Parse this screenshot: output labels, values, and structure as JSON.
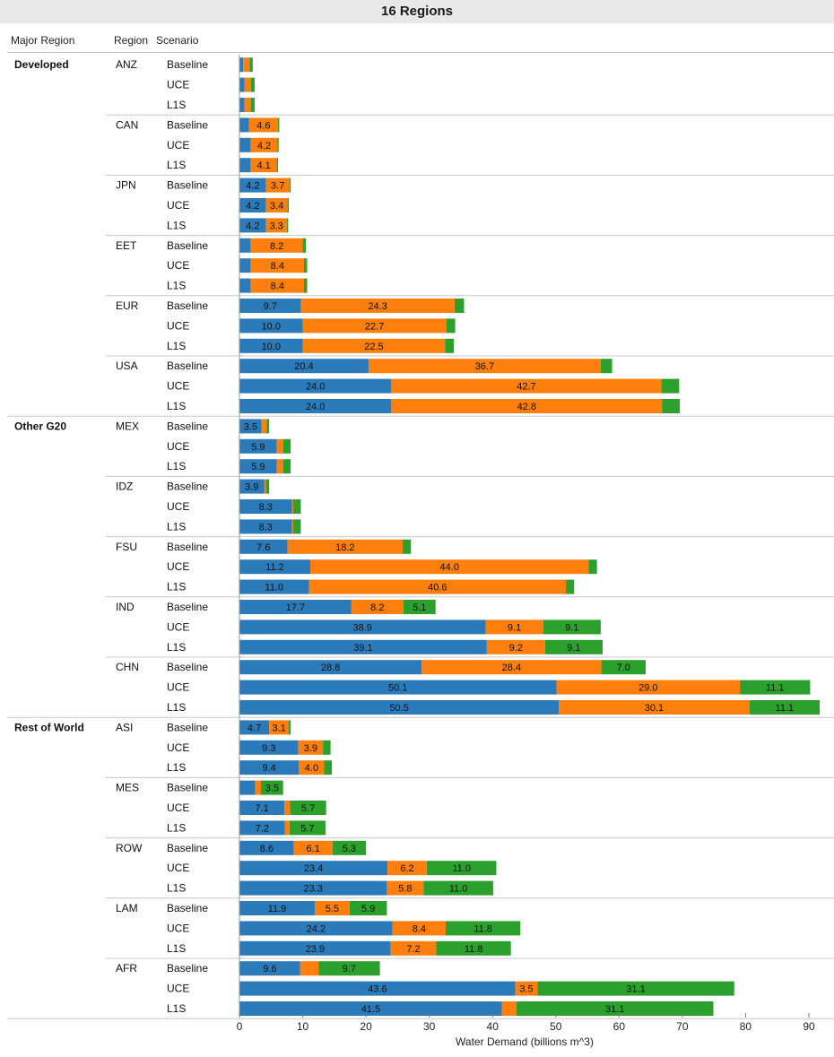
{
  "chart_data": {
    "type": "bar",
    "orientation": "horizontal",
    "stacked": true,
    "title": "16 Regions",
    "xlabel": "Water Demand (billions m^3)",
    "xlim": [
      0,
      90
    ],
    "xticks": [
      "0",
      "10",
      "20",
      "30",
      "40",
      "50",
      "60",
      "70",
      "80",
      "90"
    ],
    "row_headers": [
      "Major Region",
      "Region",
      "Scenario"
    ],
    "series_colors": [
      "#2b7bba",
      "#ff7f0e",
      "#2ca02c"
    ],
    "groups": [
      {
        "major": "Developed",
        "regions": [
          {
            "region": "ANZ",
            "rows": [
              {
                "scenario": "Baseline",
                "values": [
                  0.6,
                  1.0,
                  0.5
                ],
                "labels": [
                  "",
                  "",
                  ""
                ]
              },
              {
                "scenario": "UCE",
                "values": [
                  0.8,
                  1.0,
                  0.6
                ],
                "labels": [
                  "",
                  "",
                  ""
                ]
              },
              {
                "scenario": "L1S",
                "values": [
                  0.8,
                  1.0,
                  0.6
                ],
                "labels": [
                  "",
                  "",
                  ""
                ]
              }
            ]
          },
          {
            "region": "CAN",
            "rows": [
              {
                "scenario": "Baseline",
                "values": [
                  1.5,
                  4.6,
                  0.2
                ],
                "labels": [
                  "",
                  "4.6",
                  ""
                ]
              },
              {
                "scenario": "UCE",
                "values": [
                  1.8,
                  4.2,
                  0.2
                ],
                "labels": [
                  "",
                  "4.2",
                  ""
                ]
              },
              {
                "scenario": "L1S",
                "values": [
                  1.8,
                  4.1,
                  0.2
                ],
                "labels": [
                  "",
                  "4.1",
                  ""
                ]
              }
            ]
          },
          {
            "region": "JPN",
            "rows": [
              {
                "scenario": "Baseline",
                "values": [
                  4.2,
                  3.7,
                  0.2
                ],
                "labels": [
                  "4.2",
                  "3.7",
                  ""
                ]
              },
              {
                "scenario": "UCE",
                "values": [
                  4.2,
                  3.4,
                  0.2
                ],
                "labels": [
                  "4.2",
                  "3.4",
                  ""
                ]
              },
              {
                "scenario": "L1S",
                "values": [
                  4.2,
                  3.3,
                  0.2
                ],
                "labels": [
                  "4.2",
                  "3.3",
                  ""
                ]
              }
            ]
          },
          {
            "region": "EET",
            "rows": [
              {
                "scenario": "Baseline",
                "values": [
                  1.8,
                  8.2,
                  0.5
                ],
                "labels": [
                  "",
                  "8.2",
                  ""
                ]
              },
              {
                "scenario": "UCE",
                "values": [
                  1.8,
                  8.4,
                  0.5
                ],
                "labels": [
                  "",
                  "8.4",
                  ""
                ]
              },
              {
                "scenario": "L1S",
                "values": [
                  1.8,
                  8.4,
                  0.5
                ],
                "labels": [
                  "",
                  "8.4",
                  ""
                ]
              }
            ]
          },
          {
            "region": "EUR",
            "rows": [
              {
                "scenario": "Baseline",
                "values": [
                  9.7,
                  24.3,
                  1.5
                ],
                "labels": [
                  "9.7",
                  "24.3",
                  ""
                ]
              },
              {
                "scenario": "UCE",
                "values": [
                  10.0,
                  22.7,
                  1.4
                ],
                "labels": [
                  "10.0",
                  "22.7",
                  ""
                ]
              },
              {
                "scenario": "L1S",
                "values": [
                  10.0,
                  22.5,
                  1.4
                ],
                "labels": [
                  "10.0",
                  "22.5",
                  ""
                ]
              }
            ]
          },
          {
            "region": "USA",
            "rows": [
              {
                "scenario": "Baseline",
                "values": [
                  20.4,
                  36.7,
                  1.8
                ],
                "labels": [
                  "20.4",
                  "36.7",
                  ""
                ]
              },
              {
                "scenario": "UCE",
                "values": [
                  24.0,
                  42.7,
                  2.8
                ],
                "labels": [
                  "24.0",
                  "42.7",
                  ""
                ]
              },
              {
                "scenario": "L1S",
                "values": [
                  24.0,
                  42.8,
                  2.8
                ],
                "labels": [
                  "24.0",
                  "42.8",
                  ""
                ]
              }
            ]
          }
        ]
      },
      {
        "major": "Other G20",
        "regions": [
          {
            "region": "MEX",
            "rows": [
              {
                "scenario": "Baseline",
                "values": [
                  3.5,
                  0.8,
                  0.4
                ],
                "labels": [
                  "3.5",
                  "",
                  ""
                ]
              },
              {
                "scenario": "UCE",
                "values": [
                  5.9,
                  1.0,
                  1.2
                ],
                "labels": [
                  "5.9",
                  "",
                  ""
                ]
              },
              {
                "scenario": "L1S",
                "values": [
                  5.9,
                  1.0,
                  1.2
                ],
                "labels": [
                  "5.9",
                  "",
                  ""
                ]
              }
            ]
          },
          {
            "region": "IDZ",
            "rows": [
              {
                "scenario": "Baseline",
                "values": [
                  3.9,
                  0.3,
                  0.5
                ],
                "labels": [
                  "3.9",
                  "",
                  ""
                ]
              },
              {
                "scenario": "UCE",
                "values": [
                  8.3,
                  0.2,
                  1.2
                ],
                "labels": [
                  "8.3",
                  "",
                  ""
                ]
              },
              {
                "scenario": "L1S",
                "values": [
                  8.3,
                  0.2,
                  1.2
                ],
                "labels": [
                  "8.3",
                  "",
                  ""
                ]
              }
            ]
          },
          {
            "region": "FSU",
            "rows": [
              {
                "scenario": "Baseline",
                "values": [
                  7.6,
                  18.2,
                  1.3
                ],
                "labels": [
                  "7.6",
                  "18.2",
                  ""
                ]
              },
              {
                "scenario": "UCE",
                "values": [
                  11.2,
                  44.0,
                  1.3
                ],
                "labels": [
                  "11.2",
                  "44.0",
                  ""
                ]
              },
              {
                "scenario": "L1S",
                "values": [
                  11.0,
                  40.6,
                  1.3
                ],
                "labels": [
                  "11.0",
                  "40.6",
                  ""
                ]
              }
            ]
          },
          {
            "region": "IND",
            "rows": [
              {
                "scenario": "Baseline",
                "values": [
                  17.7,
                  8.2,
                  5.1
                ],
                "labels": [
                  "17.7",
                  "8.2",
                  "5.1"
                ]
              },
              {
                "scenario": "UCE",
                "values": [
                  38.9,
                  9.1,
                  9.1
                ],
                "labels": [
                  "38.9",
                  "9.1",
                  "9.1"
                ]
              },
              {
                "scenario": "L1S",
                "values": [
                  39.1,
                  9.2,
                  9.1
                ],
                "labels": [
                  "39.1",
                  "9.2",
                  "9.1"
                ]
              }
            ]
          },
          {
            "region": "CHN",
            "rows": [
              {
                "scenario": "Baseline",
                "values": [
                  28.8,
                  28.4,
                  7.0
                ],
                "labels": [
                  "28.8",
                  "28.4",
                  "7.0"
                ]
              },
              {
                "scenario": "UCE",
                "values": [
                  50.1,
                  29.0,
                  11.1
                ],
                "labels": [
                  "50.1",
                  "29.0",
                  "11.1"
                ]
              },
              {
                "scenario": "L1S",
                "values": [
                  50.5,
                  30.1,
                  11.1
                ],
                "labels": [
                  "50.5",
                  "30.1",
                  "11.1"
                ]
              }
            ]
          }
        ]
      },
      {
        "major": "Rest of World",
        "regions": [
          {
            "region": "ASI",
            "rows": [
              {
                "scenario": "Baseline",
                "values": [
                  4.7,
                  3.1,
                  0.3
                ],
                "labels": [
                  "4.7",
                  "3.1",
                  ""
                ]
              },
              {
                "scenario": "UCE",
                "values": [
                  9.3,
                  3.9,
                  1.2
                ],
                "labels": [
                  "9.3",
                  "3.9",
                  ""
                ]
              },
              {
                "scenario": "L1S",
                "values": [
                  9.4,
                  4.0,
                  1.2
                ],
                "labels": [
                  "9.4",
                  "4.0",
                  ""
                ]
              }
            ]
          },
          {
            "region": "MES",
            "rows": [
              {
                "scenario": "Baseline",
                "values": [
                  2.5,
                  0.9,
                  3.5
                ],
                "labels": [
                  "",
                  "",
                  "3.5"
                ]
              },
              {
                "scenario": "UCE",
                "values": [
                  7.1,
                  0.9,
                  5.7
                ],
                "labels": [
                  "7.1",
                  "",
                  "5.7"
                ]
              },
              {
                "scenario": "L1S",
                "values": [
                  7.2,
                  0.7,
                  5.7
                ],
                "labels": [
                  "7.2",
                  "",
                  "5.7"
                ]
              }
            ]
          },
          {
            "region": "ROW",
            "rows": [
              {
                "scenario": "Baseline",
                "values": [
                  8.6,
                  6.1,
                  5.3
                ],
                "labels": [
                  "8.6",
                  "6.1",
                  "5.3"
                ]
              },
              {
                "scenario": "UCE",
                "values": [
                  23.4,
                  6.2,
                  11.0
                ],
                "labels": [
                  "23.4",
                  "6.2",
                  "11.0"
                ]
              },
              {
                "scenario": "L1S",
                "values": [
                  23.3,
                  5.8,
                  11.0
                ],
                "labels": [
                  "23.3",
                  "5.8",
                  "11.0"
                ]
              }
            ]
          },
          {
            "region": "LAM",
            "rows": [
              {
                "scenario": "Baseline",
                "values": [
                  11.9,
                  5.5,
                  5.9
                ],
                "labels": [
                  "11.9",
                  "5.5",
                  "5.9"
                ]
              },
              {
                "scenario": "UCE",
                "values": [
                  24.2,
                  8.4,
                  11.8
                ],
                "labels": [
                  "24.2",
                  "8.4",
                  "11.8"
                ]
              },
              {
                "scenario": "L1S",
                "values": [
                  23.9,
                  7.2,
                  11.8
                ],
                "labels": [
                  "23.9",
                  "7.2",
                  "11.8"
                ]
              }
            ]
          },
          {
            "region": "AFR",
            "rows": [
              {
                "scenario": "Baseline",
                "values": [
                  9.6,
                  2.9,
                  9.7
                ],
                "labels": [
                  "9.6",
                  "",
                  "9.7"
                ]
              },
              {
                "scenario": "UCE",
                "values": [
                  43.6,
                  3.5,
                  31.1
                ],
                "labels": [
                  "43.6",
                  "3.5",
                  "31.1"
                ]
              },
              {
                "scenario": "L1S",
                "values": [
                  41.5,
                  2.3,
                  31.1
                ],
                "labels": [
                  "41.5",
                  "",
                  "31.1"
                ]
              }
            ]
          }
        ]
      }
    ]
  }
}
